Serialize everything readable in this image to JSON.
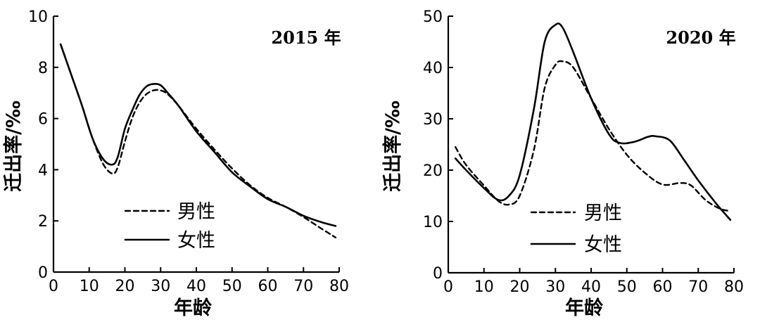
{
  "colors": {
    "line": "#000000",
    "background": "#ffffff"
  },
  "chart_data": [
    {
      "type": "line",
      "title": "2015 年",
      "xlabel": "年龄",
      "ylabel": "迁出率/‰",
      "xlim": [
        0,
        80
      ],
      "ylim": [
        0,
        10
      ],
      "xticks": [
        0,
        10,
        20,
        30,
        40,
        50,
        60,
        70,
        80
      ],
      "yticks": [
        0,
        2,
        4,
        6,
        8,
        10
      ],
      "grid": false,
      "legend_position": "bottom-center",
      "series": [
        {
          "name": "男性",
          "style": "dashed",
          "x": [
            2,
            5,
            8,
            11,
            14,
            16.5,
            18,
            20,
            22,
            24,
            26,
            28,
            30,
            32,
            35,
            40,
            45,
            50,
            55,
            60,
            65,
            70,
            75,
            79
          ],
          "y": [
            8.9,
            7.7,
            6.5,
            5.2,
            4.2,
            3.85,
            4.1,
            5.1,
            6.0,
            6.6,
            6.95,
            7.1,
            7.1,
            6.95,
            6.5,
            5.6,
            4.8,
            4.05,
            3.4,
            2.9,
            2.55,
            2.15,
            1.7,
            1.35
          ]
        },
        {
          "name": "女性",
          "style": "solid",
          "x": [
            2,
            5,
            8,
            11,
            14,
            16.5,
            18,
            20,
            22,
            24,
            26,
            28,
            30,
            32,
            35,
            40,
            45,
            50,
            55,
            60,
            65,
            70,
            75,
            79
          ],
          "y": [
            8.9,
            7.7,
            6.5,
            5.2,
            4.4,
            4.2,
            4.5,
            5.6,
            6.3,
            6.9,
            7.25,
            7.35,
            7.3,
            7.0,
            6.5,
            5.5,
            4.7,
            3.9,
            3.35,
            2.85,
            2.55,
            2.2,
            1.95,
            1.8
          ]
        }
      ]
    },
    {
      "type": "line",
      "title": "2020 年",
      "xlabel": "年龄",
      "ylabel": "迁出率/‰",
      "xlim": [
        0,
        80
      ],
      "ylim": [
        0,
        50
      ],
      "xticks": [
        0,
        10,
        20,
        30,
        40,
        50,
        60,
        70,
        80
      ],
      "yticks": [
        0,
        10,
        20,
        30,
        40,
        50
      ],
      "grid": false,
      "legend_position": "bottom-center",
      "series": [
        {
          "name": "男性",
          "style": "dashed",
          "x": [
            2,
            5,
            10,
            14,
            17,
            20,
            24,
            27,
            30,
            32,
            35,
            40,
            45,
            50,
            55,
            60,
            65,
            68,
            72,
            76,
            79
          ],
          "y": [
            24.5,
            21,
            17,
            14,
            13.3,
            15,
            24,
            36,
            40.5,
            41.2,
            40,
            34,
            28,
            23,
            19.5,
            17.2,
            17.5,
            17.0,
            14.2,
            12.5,
            12
          ]
        },
        {
          "name": "女性",
          "style": "solid",
          "x": [
            2,
            5,
            10,
            14,
            17,
            20,
            24,
            27,
            30,
            32,
            35,
            40,
            45,
            48,
            52,
            56,
            58,
            62,
            66,
            70,
            75,
            79
          ],
          "y": [
            22.3,
            20,
            16.5,
            14.2,
            15,
            19,
            32,
            45,
            48.3,
            47.8,
            43,
            34,
            27,
            25.3,
            25.5,
            26.5,
            26.6,
            25.8,
            22,
            18,
            13.5,
            10.3
          ]
        }
      ]
    }
  ]
}
